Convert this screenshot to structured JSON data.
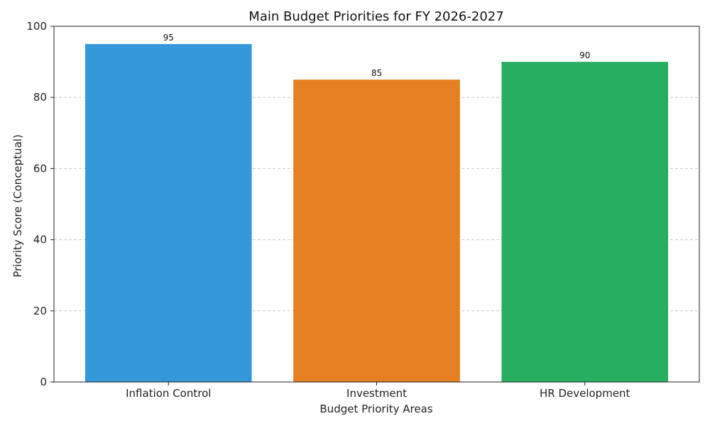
{
  "chart_data": {
    "type": "bar",
    "title": "Main Budget Priorities for FY 2026-2027",
    "xlabel": "Budget Priority Areas",
    "ylabel": "Priority Score (Conceptual)",
    "categories": [
      "Inflation Control",
      "Investment",
      "HR Development"
    ],
    "values": [
      95,
      85,
      90
    ],
    "data_labels": [
      "95",
      "85",
      "90"
    ],
    "colors": [
      "#3498db",
      "#e67e22",
      "#27ae60"
    ],
    "ylim": [
      0,
      100
    ],
    "yticks": [
      0,
      20,
      40,
      60,
      80,
      100
    ],
    "grid": "y-dashed",
    "legend": "none"
  }
}
